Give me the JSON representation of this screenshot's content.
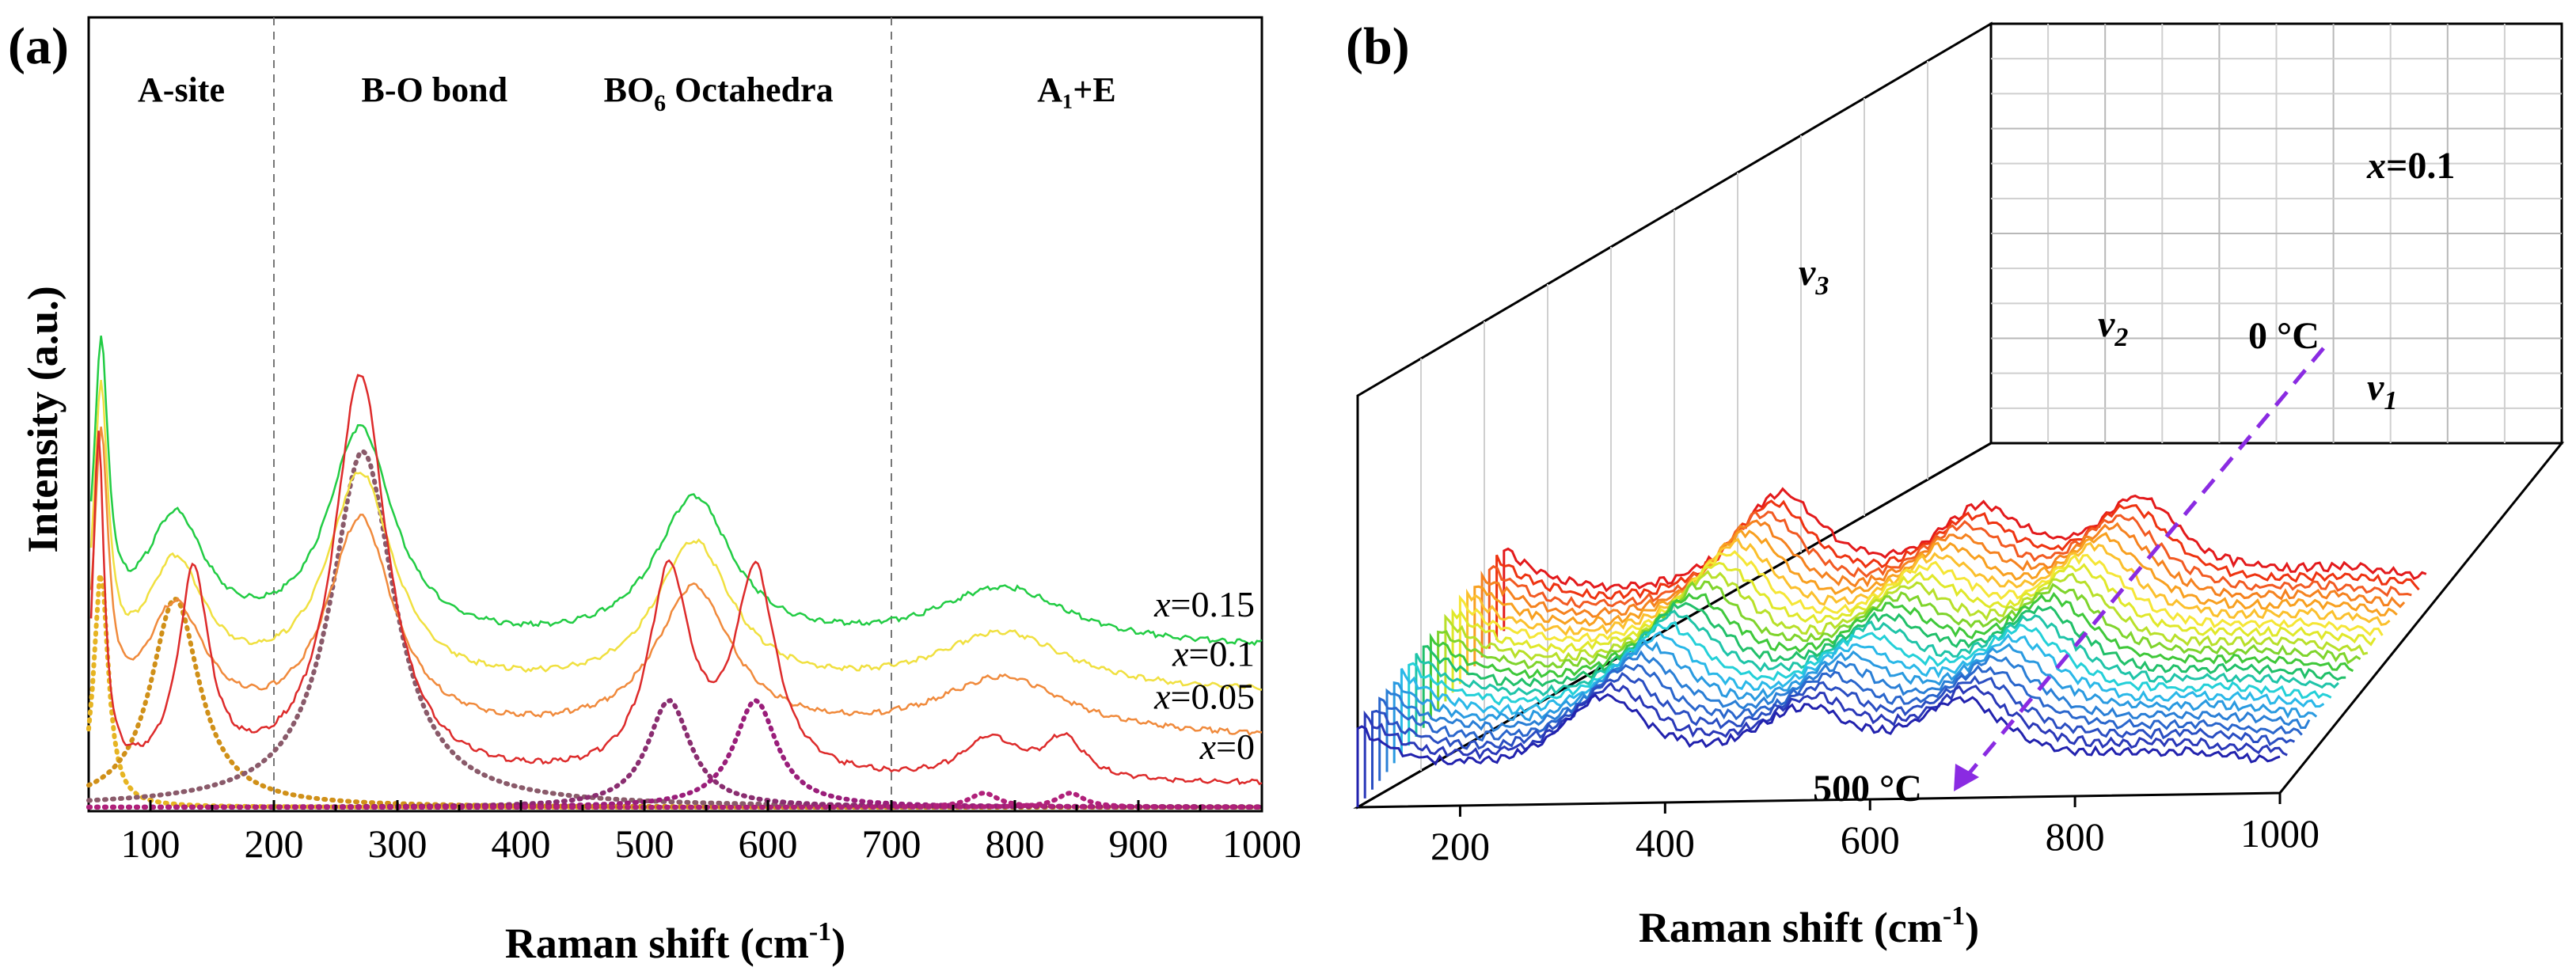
{
  "chart_data": [
    {
      "type": "line",
      "panel": "(a)",
      "xlabel": "Raman shift (cm",
      "xlabel_sup": "-1",
      "xlabel_end": ")",
      "ylabel": "Intensity (a.u.)",
      "xlim": [
        50,
        1000
      ],
      "xticks": [
        "100",
        "200",
        "300",
        "400",
        "500",
        "600",
        "700",
        "800",
        "900",
        "1000"
      ],
      "region_dividers": [
        200,
        700
      ],
      "regions": [
        {
          "label": "A-site",
          "x": 125
        },
        {
          "label": "B-O bond",
          "x": 330
        },
        {
          "label": "BO",
          "sub": "6",
          "rest": " Octahedra",
          "x": 560
        },
        {
          "label": "A₁+E",
          "x": 850
        }
      ],
      "series": [
        {
          "name": "x=0.15",
          "prefix": "x",
          "value": "=0.15",
          "color": "#22cc44",
          "peaks": [
            [
              60,
              1.25,
              14
            ],
            [
              120,
              0.55,
              60
            ],
            [
              270,
              0.95,
              65
            ],
            [
              540,
              0.65,
              75
            ],
            [
              790,
              0.26,
              130
            ]
          ],
          "offset": 0.6
        },
        {
          "name": "x=0.1",
          "prefix": "x",
          "value": "=0.1",
          "color": "#f0e040",
          "peaks": [
            [
              60,
              1.25,
              14
            ],
            [
              120,
              0.55,
              60
            ],
            [
              270,
              0.95,
              65
            ],
            [
              540,
              0.65,
              75
            ],
            [
              790,
              0.26,
              130
            ]
          ],
          "offset": 0.4
        },
        {
          "name": "x=0.05",
          "prefix": "x",
          "value": "=0.05",
          "color": "#f08a3c",
          "peaks": [
            [
              60,
              1.25,
              14
            ],
            [
              120,
              0.55,
              60
            ],
            [
              270,
              0.95,
              65
            ],
            [
              540,
              0.65,
              75
            ],
            [
              790,
              0.26,
              130
            ]
          ],
          "offset": 0.2
        },
        {
          "name": "x=0",
          "prefix": "x",
          "value": "=0",
          "color": "#dd2b2b",
          "peaks": [
            [
              58,
              1.5,
              11
            ],
            [
              135,
              0.9,
              30
            ],
            [
              270,
              1.8,
              52
            ],
            [
              520,
              0.9,
              40
            ],
            [
              590,
              0.9,
              40
            ],
            [
              780,
              0.18,
              55
            ],
            [
              840,
              0.18,
              40
            ]
          ],
          "offset": 0
        }
      ],
      "components": [
        {
          "center": 60,
          "amp": 1.0,
          "width": 14,
          "color": "#e6b422"
        },
        {
          "center": 120,
          "amp": 0.88,
          "width": 48,
          "color": "#d09018"
        },
        {
          "center": 272,
          "amp": 1.5,
          "width": 62,
          "color": "#8a5a6a"
        },
        {
          "center": 520,
          "amp": 0.45,
          "width": 42,
          "color": "#8a2d70"
        },
        {
          "center": 590,
          "amp": 0.45,
          "width": 42,
          "color": "#9a1e7a"
        },
        {
          "center": 775,
          "amp": 0.06,
          "width": 28,
          "color": "#b0207a"
        },
        {
          "center": 845,
          "amp": 0.06,
          "width": 26,
          "color": "#b0207a"
        }
      ]
    },
    {
      "type": "line",
      "panel": "(b)",
      "xlabel": "Raman shift (cm",
      "xlabel_sup": "-1",
      "xlabel_end": ")",
      "xlim": [
        100,
        1000
      ],
      "xticks": [
        "200",
        "400",
        "600",
        "800",
        "1000"
      ],
      "composition_label_prefix": "x",
      "composition_label_value": "=0.1",
      "mode_labels": [
        {
          "base": "v",
          "sub": "3",
          "x": 370
        },
        {
          "base": "v",
          "sub": "2",
          "x": 720
        },
        {
          "base": "v",
          "sub": "1",
          "x": 960
        }
      ],
      "temperature_start": "0 °C",
      "temperature_end": "500 °C",
      "arrow_color": "#8a2be2",
      "trace_colors": [
        "#e31a1c",
        "#ee3311",
        "#f25a22",
        "#f5821f",
        "#f8a020",
        "#fbc02d",
        "#f5e636",
        "#e0e82a",
        "#b8e02a",
        "#7fd42c",
        "#3fc83a",
        "#21c06a",
        "#1fc4a8",
        "#24d0d8",
        "#2ab8e8",
        "#2a9ae0",
        "#2a7fd6",
        "#2a66cc",
        "#2a4ec2",
        "#2a38b8",
        "#2222ae"
      ]
    }
  ]
}
